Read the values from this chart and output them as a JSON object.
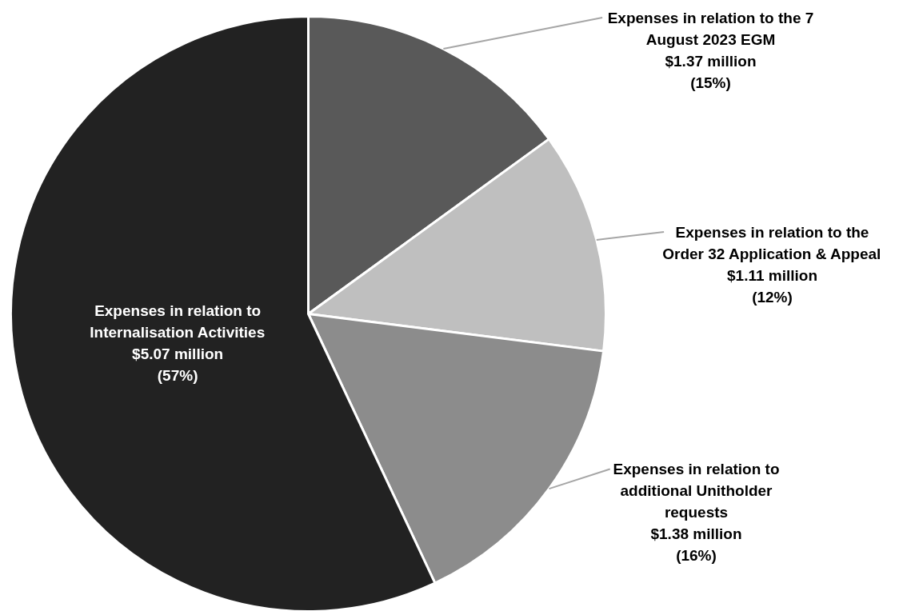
{
  "chart_data": {
    "type": "pie",
    "categories": [
      "Expenses in relation to the 7 August 2023 EGM",
      "Expenses in relation to the Order 32 Application & Appeal",
      "Expenses in relation to additional Unitholder requests",
      "Expenses in relation to Internalisation Activities"
    ],
    "values": [
      15,
      12,
      16,
      57
    ],
    "colors": [
      "#595959",
      "#bfbfbf",
      "#8c8c8c",
      "#222222"
    ],
    "value_labels": [
      "$1.37 million (15%)",
      "$1.11 million (12%)",
      "$1.38 million (16%)",
      "$5.07 million (57%)"
    ]
  }
}
